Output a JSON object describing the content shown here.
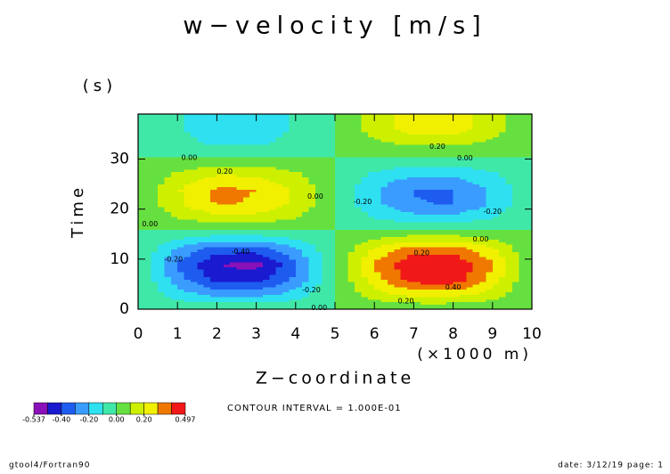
{
  "chart_data": {
    "type": "contour",
    "title": "w−velocity [m/s]",
    "x_label": "Z−coordinate",
    "x_unit": "(×1000 m)",
    "y_label": "Time",
    "y_unit": "(s)",
    "x": [
      0,
      1,
      2,
      3,
      4,
      5,
      6,
      7,
      8,
      9,
      10
    ],
    "y": [
      0,
      3,
      6,
      9,
      12,
      15,
      18,
      21,
      24,
      27,
      30,
      33,
      36,
      39
    ],
    "z": [
      [
        0,
        0,
        0,
        0,
        0,
        0,
        0,
        0,
        0,
        0,
        0
      ],
      [
        0,
        -0.15,
        -0.24,
        -0.24,
        -0.15,
        0,
        0.15,
        0.24,
        0.24,
        0.15,
        0
      ],
      [
        0,
        -0.26,
        -0.43,
        -0.45,
        -0.28,
        0,
        0.26,
        0.45,
        0.47,
        0.26,
        0
      ],
      [
        0,
        -0.31,
        -0.5,
        -0.537,
        -0.33,
        0,
        0.31,
        0.49,
        0.497,
        0.31,
        0
      ],
      [
        0,
        -0.22,
        -0.36,
        -0.36,
        -0.22,
        0,
        0.22,
        0.36,
        0.36,
        0.22,
        0
      ],
      [
        0,
        -0.05,
        -0.08,
        -0.08,
        -0.05,
        0,
        0.05,
        0.08,
        0.08,
        0.05,
        0
      ],
      [
        0,
        0.09,
        0.14,
        0.14,
        0.09,
        0,
        -0.09,
        -0.14,
        -0.14,
        -0.09,
        0
      ],
      [
        0,
        0.18,
        0.31,
        0.29,
        0.18,
        0,
        -0.18,
        -0.29,
        -0.31,
        -0.18,
        0
      ],
      [
        0,
        0.19,
        0.32,
        0.3,
        0.19,
        0,
        -0.19,
        -0.31,
        -0.3,
        -0.19,
        0
      ],
      [
        0,
        0.12,
        0.19,
        0.19,
        0.12,
        0,
        -0.12,
        -0.19,
        -0.19,
        -0.12,
        0
      ],
      [
        0,
        0.01,
        0.02,
        0.02,
        0.01,
        0,
        -0.01,
        -0.02,
        -0.02,
        -0.01,
        0
      ],
      [
        0,
        -0.07,
        -0.11,
        -0.11,
        -0.07,
        0,
        0.07,
        0.11,
        0.11,
        0.07,
        0
      ],
      [
        0,
        -0.09,
        -0.15,
        -0.15,
        -0.09,
        0,
        0.15,
        0.25,
        0.25,
        0.15,
        0
      ],
      [
        0,
        -0.09,
        -0.15,
        -0.15,
        -0.09,
        0,
        0.15,
        0.26,
        0.25,
        0.15,
        0
      ]
    ],
    "xlim": [
      0,
      10
    ],
    "xticks": [
      0,
      1,
      2,
      3,
      4,
      5,
      6,
      7,
      8,
      9,
      10
    ],
    "ylim": [
      0,
      39
    ],
    "yticks": [
      0,
      10,
      20,
      30
    ],
    "levels": [
      -0.537,
      -0.5,
      -0.4,
      -0.3,
      -0.2,
      -0.1,
      0,
      0.1,
      0.2,
      0.3,
      0.4,
      0.497
    ],
    "colors": [
      "#8a10b8",
      "#1a1ad0",
      "#1e5cf0",
      "#3a9cff",
      "#2ee0f0",
      "#40e8a8",
      "#66e040",
      "#ccf000",
      "#f0f000",
      "#f07800",
      "#f01818",
      "#f8a8b8"
    ],
    "colorbar_ticks": [
      {
        "value": -0.537,
        "label": "-0.537"
      },
      {
        "value": -0.4,
        "label": "-0.40"
      },
      {
        "value": -0.2,
        "label": "-0.20"
      },
      {
        "value": 0,
        "label": "0.00"
      },
      {
        "value": 0.2,
        "label": "0.20"
      },
      {
        "value": 0.497,
        "label": "0.497"
      }
    ],
    "contour_interval": "CONTOUR INTERVAL = 1.000E-01",
    "contour_labels": [
      {
        "label": "0.20",
        "x": 7.6,
        "y": 32.5
      },
      {
        "label": "0.00",
        "x": 1.3,
        "y": 30.3
      },
      {
        "label": "0.00",
        "x": 8.3,
        "y": 30.2
      },
      {
        "label": "0.20",
        "x": 2.2,
        "y": 27.5
      },
      {
        "label": "0.00",
        "x": 4.5,
        "y": 22.5
      },
      {
        "label": "-0.20",
        "x": 5.7,
        "y": 21.5
      },
      {
        "label": "-0.20",
        "x": 9.0,
        "y": 19.5
      },
      {
        "label": "0.00",
        "x": 0.3,
        "y": 17
      },
      {
        "label": "0.00",
        "x": 8.7,
        "y": 14
      },
      {
        "label": "0.20",
        "x": 7.2,
        "y": 11.2
      },
      {
        "label": "-0.20",
        "x": 0.9,
        "y": 10
      },
      {
        "label": "-0.40",
        "x": 2.6,
        "y": 11.5
      },
      {
        "label": "-0.20",
        "x": 4.4,
        "y": 3.8
      },
      {
        "label": "0.40",
        "x": 8.0,
        "y": 4.4
      },
      {
        "label": "0.20",
        "x": 6.8,
        "y": 1.6
      },
      {
        "label": "0.00",
        "x": 4.6,
        "y": 0.3
      }
    ]
  },
  "footer": {
    "left": "gtool4/Fortran90",
    "right": "date: 3/12/19 page: 1"
  }
}
